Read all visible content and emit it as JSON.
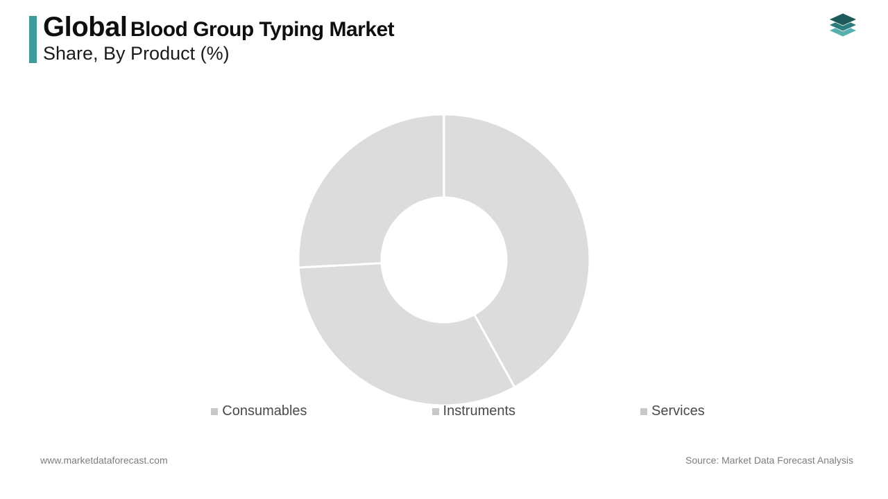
{
  "header": {
    "accent_color": "#3f9a9a",
    "title_strong": "Global",
    "title_rest": "Blood Group Typing Market",
    "subtitle": "Share, By Product (%)",
    "title_color": "#0f0f0f",
    "title_strong_fontsize": 40,
    "title_rest_fontsize": 30,
    "subtitle_fontsize": 27
  },
  "logo": {
    "colors": [
      "#1f5a5a",
      "#2d7d7d",
      "#56b0b0"
    ]
  },
  "chart": {
    "type": "donut",
    "outer_radius": 210,
    "inner_radius": 90,
    "center_fill": "#ffffff",
    "slice_fill": "#dcdcdc",
    "gap_stroke": "#ffffff",
    "gap_width": 3,
    "slices": [
      {
        "label": "Consumables",
        "value": 42,
        "start_angle": 0,
        "end_angle": 151
      },
      {
        "label": "Instruments",
        "value": 32,
        "start_angle": 151,
        "end_angle": 267
      },
      {
        "label": "Services",
        "value": 26,
        "start_angle": 267,
        "end_angle": 359.9
      }
    ]
  },
  "legend": {
    "swatch_color": "#c8c8c8",
    "text_color": "#4a4a4a",
    "font_size": 20,
    "items": [
      "Consumables",
      "Instruments",
      "Services"
    ]
  },
  "footer": {
    "left": "www.marketdataforecast.com",
    "right": "Source: Market Data Forecast Analysis",
    "color": "#7d7d7d",
    "font_size": 14
  }
}
